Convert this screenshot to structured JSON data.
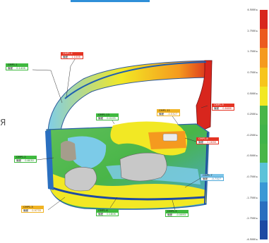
{
  "stray_glyph": "Я",
  "callouts": [
    {
      "id": "cmp1_1",
      "title": "CMP1-1",
      "label": "偏差",
      "value": "0.1406",
      "tone": "green"
    },
    {
      "id": "cmp1_4",
      "title": "CMP1-4",
      "label": "偏差",
      "value": "1.1006",
      "tone": "red"
    },
    {
      "id": "cmp1_13",
      "title": "CMP1-13",
      "label": "偏差",
      "value": "0.0195",
      "tone": "green"
    },
    {
      "id": "cmp1_11",
      "title": "CMP1-11",
      "label": "偏差",
      "value": "-0.0327",
      "tone": "orange"
    },
    {
      "id": "cmp1_9",
      "title": "CMP1-9",
      "label": "偏差",
      "value": "0.8486",
      "tone": "red"
    },
    {
      "id": "cmp1_8",
      "title": "CMP1-8",
      "label": "偏差",
      "value": "1.1636",
      "tone": "red"
    },
    {
      "id": "cmp1_2",
      "title": "CMP1-2",
      "label": "偏差",
      "value": "0.6030",
      "tone": "green"
    },
    {
      "id": "cmp1_7",
      "title": "CMP1-7",
      "label": "偏差",
      "value": "-0.7327",
      "tone": "blue"
    },
    {
      "id": "cmp1_3",
      "title": "CMP1-3",
      "label": "偏差",
      "value": "0.9778",
      "tone": "orange"
    },
    {
      "id": "cmp1_6",
      "title": "CMP1-6",
      "label": "偏差",
      "value": "0.1806",
      "tone": "green"
    },
    {
      "id": "cmp1_5",
      "title": "CMP1-5",
      "label": "偏差",
      "value": "-0.0693",
      "tone": "green"
    }
  ],
  "scale": {
    "ticks": [
      "4.5000",
      "2.7500",
      "1.7500",
      "0.7500",
      "0.5000",
      "0.2500",
      "-0.2500",
      "-0.5000",
      "-0.7500",
      "-1.7500",
      "-2.7500",
      "-4.5000"
    ],
    "colors": [
      "#d8261d",
      "#ec5a1e",
      "#f59a1f",
      "#f7c51c",
      "#f2e824",
      "#49b548",
      "#41b34a",
      "#49b548",
      "#5cc2d9",
      "#3a98d5",
      "#2a6fbf",
      "#1e4aa3"
    ]
  }
}
